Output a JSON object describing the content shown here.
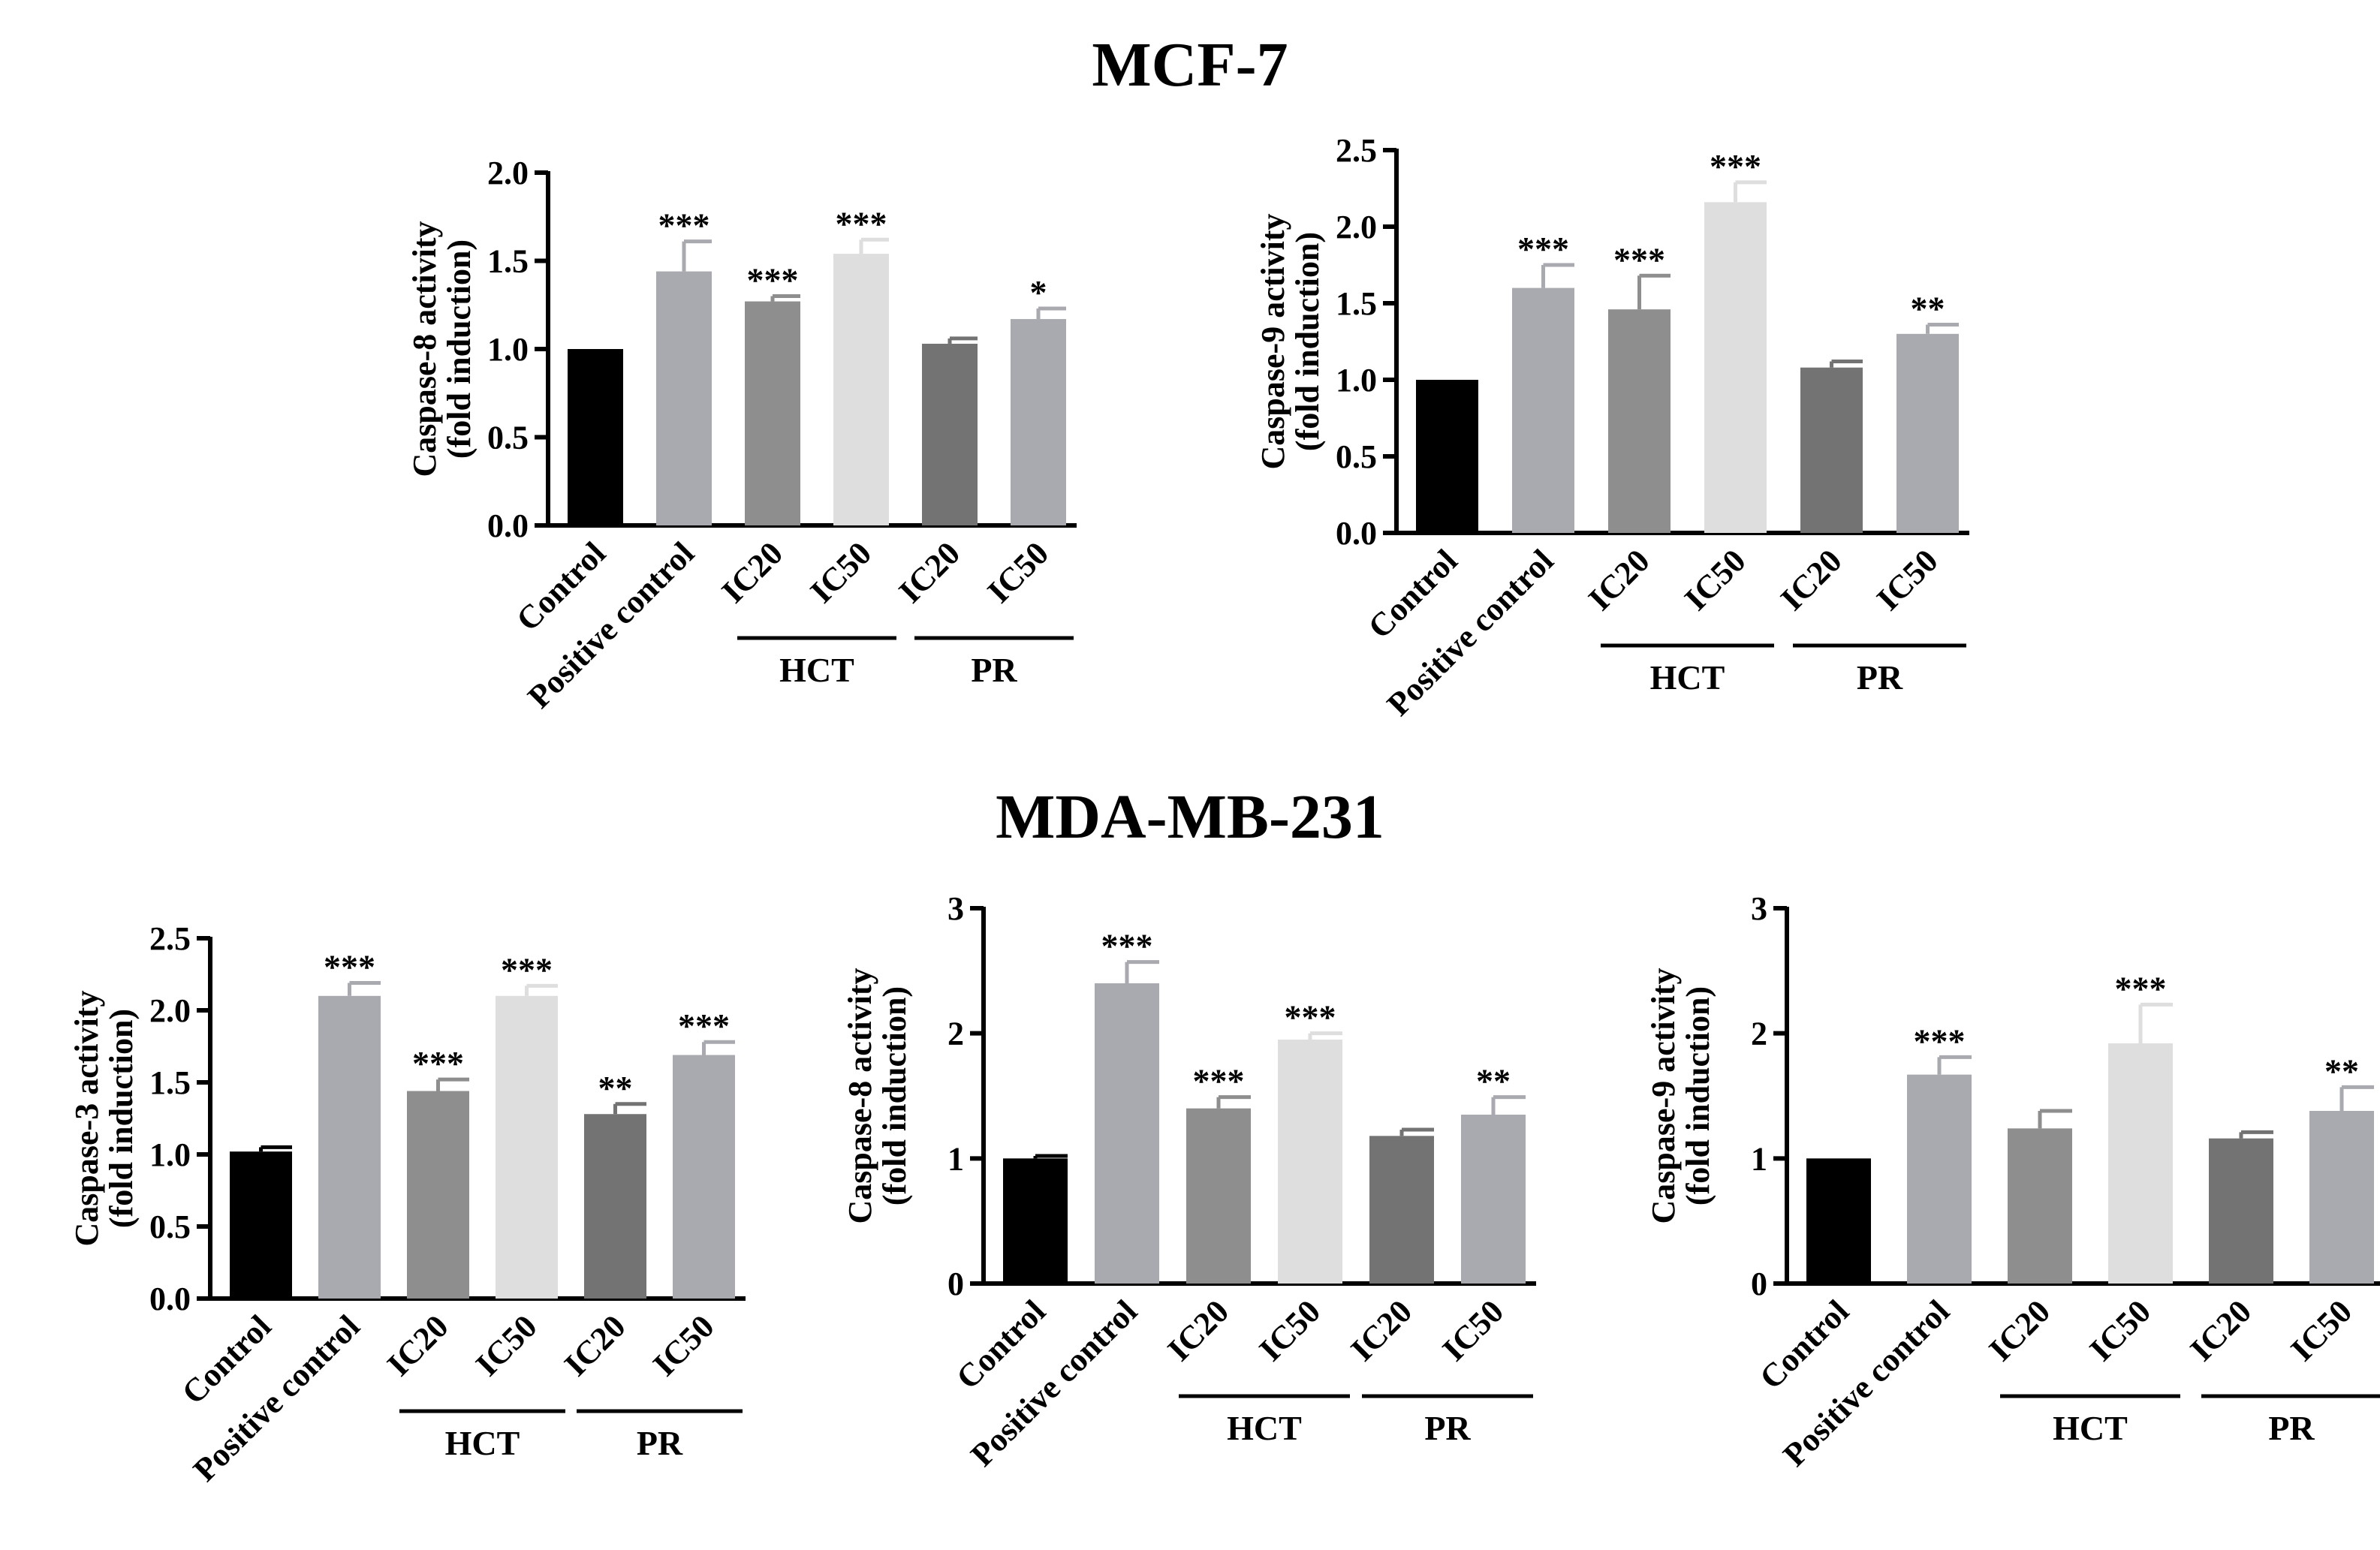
{
  "sections": {
    "top": "MCF-7",
    "bottom": "MDA-MB-231"
  },
  "chart_data": [
    {
      "type": "bar",
      "section": "MCF-7",
      "ylabel": "Caspase-8 activity",
      "ylabel2": "(fold induction)",
      "yticks": [
        "0.0",
        "0.5",
        "1.0",
        "1.5",
        "2.0"
      ],
      "ylim": [
        0,
        2.0
      ],
      "categories": [
        "Control",
        "Positive control",
        "IC20",
        "IC50",
        "IC20",
        "IC50"
      ],
      "values": [
        1.0,
        1.44,
        1.27,
        1.54,
        1.03,
        1.17
      ],
      "errors": [
        0.0,
        0.17,
        0.03,
        0.08,
        0.03,
        0.06
      ],
      "significance": [
        "",
        "***",
        "***",
        "***",
        "",
        "*"
      ],
      "colors": [
        "#000000",
        "#a9a9b0",
        "#8e8e8e",
        "#dedede",
        "#737373",
        "#a9a9b0"
      ],
      "groups": [
        {
          "label": "HCT",
          "from": 2,
          "to": 3
        },
        {
          "label": "PR",
          "from": 4,
          "to": 5
        }
      ]
    },
    {
      "type": "bar",
      "section": "MCF-7",
      "ylabel": "Caspase-9 activity",
      "ylabel2": "(fold induction)",
      "yticks": [
        "0.0",
        "0.5",
        "1.0",
        "1.5",
        "2.0",
        "2.5"
      ],
      "ylim": [
        0,
        2.5
      ],
      "categories": [
        "Control",
        "Positive control",
        "IC20",
        "IC50",
        "IC20",
        "IC50"
      ],
      "values": [
        1.0,
        1.6,
        1.46,
        2.16,
        1.08,
        1.3
      ],
      "errors": [
        0.0,
        0.15,
        0.22,
        0.13,
        0.04,
        0.06
      ],
      "significance": [
        "",
        "***",
        "***",
        "***",
        "",
        "**"
      ],
      "colors": [
        "#000000",
        "#a9a9b0",
        "#8e8e8e",
        "#dedede",
        "#737373",
        "#a9a9b0"
      ],
      "groups": [
        {
          "label": "HCT",
          "from": 2,
          "to": 3
        },
        {
          "label": "PR",
          "from": 4,
          "to": 5
        }
      ]
    },
    {
      "type": "bar",
      "section": "MDA-MB-231",
      "ylabel": "Caspase-3 activity",
      "ylabel2": "(fold induction)",
      "yticks": [
        "0.0",
        "0.5",
        "1.0",
        "1.5",
        "2.0",
        "2.5"
      ],
      "ylim": [
        0,
        2.5
      ],
      "categories": [
        "Control",
        "Positive control",
        "IC20",
        "IC50",
        "IC20",
        "IC50"
      ],
      "values": [
        1.02,
        2.1,
        1.44,
        2.1,
        1.28,
        1.69
      ],
      "errors": [
        0.03,
        0.09,
        0.08,
        0.07,
        0.07,
        0.09
      ],
      "significance": [
        "",
        "***",
        "***",
        "***",
        "**",
        "***"
      ],
      "colors": [
        "#000000",
        "#a9a9b0",
        "#8e8e8e",
        "#dedede",
        "#737373",
        "#a9a9b0"
      ],
      "groups": [
        {
          "label": "HCT",
          "from": 2,
          "to": 3
        },
        {
          "label": "PR",
          "from": 4,
          "to": 5
        }
      ]
    },
    {
      "type": "bar",
      "section": "MDA-MB-231",
      "ylabel": "Caspase-8 activity",
      "ylabel2": "(fold induction)",
      "yticks": [
        "0",
        "1",
        "2",
        "3"
      ],
      "ylim": [
        0,
        3
      ],
      "categories": [
        "Control",
        "Positive control",
        "IC20",
        "IC50",
        "IC20",
        "IC50"
      ],
      "values": [
        1.0,
        2.4,
        1.4,
        1.95,
        1.18,
        1.35
      ],
      "errors": [
        0.02,
        0.17,
        0.09,
        0.05,
        0.05,
        0.14
      ],
      "significance": [
        "",
        "***",
        "***",
        "***",
        "",
        "**"
      ],
      "colors": [
        "#000000",
        "#a9a9b0",
        "#8e8e8e",
        "#dedede",
        "#737373",
        "#a9a9b0"
      ],
      "groups": [
        {
          "label": "HCT",
          "from": 2,
          "to": 3
        },
        {
          "label": "PR",
          "from": 4,
          "to": 5
        }
      ]
    },
    {
      "type": "bar",
      "section": "MDA-MB-231",
      "ylabel": "Caspase-9 activity",
      "ylabel2": "(fold induction)",
      "yticks": [
        "0",
        "1",
        "2",
        "3"
      ],
      "ylim": [
        0,
        3
      ],
      "categories": [
        "Control",
        "Positive control",
        "IC20",
        "IC50",
        "IC20",
        "IC50"
      ],
      "values": [
        1.0,
        1.67,
        1.24,
        1.92,
        1.16,
        1.38
      ],
      "errors": [
        0.0,
        0.14,
        0.14,
        0.31,
        0.05,
        0.19
      ],
      "significance": [
        "",
        "***",
        "",
        "***",
        "",
        "**"
      ],
      "colors": [
        "#000000",
        "#a9a9b0",
        "#8e8e8e",
        "#dedede",
        "#737373",
        "#a9a9b0"
      ],
      "groups": [
        {
          "label": "HCT",
          "from": 2,
          "to": 3
        },
        {
          "label": "PR",
          "from": 4,
          "to": 5
        }
      ]
    }
  ]
}
